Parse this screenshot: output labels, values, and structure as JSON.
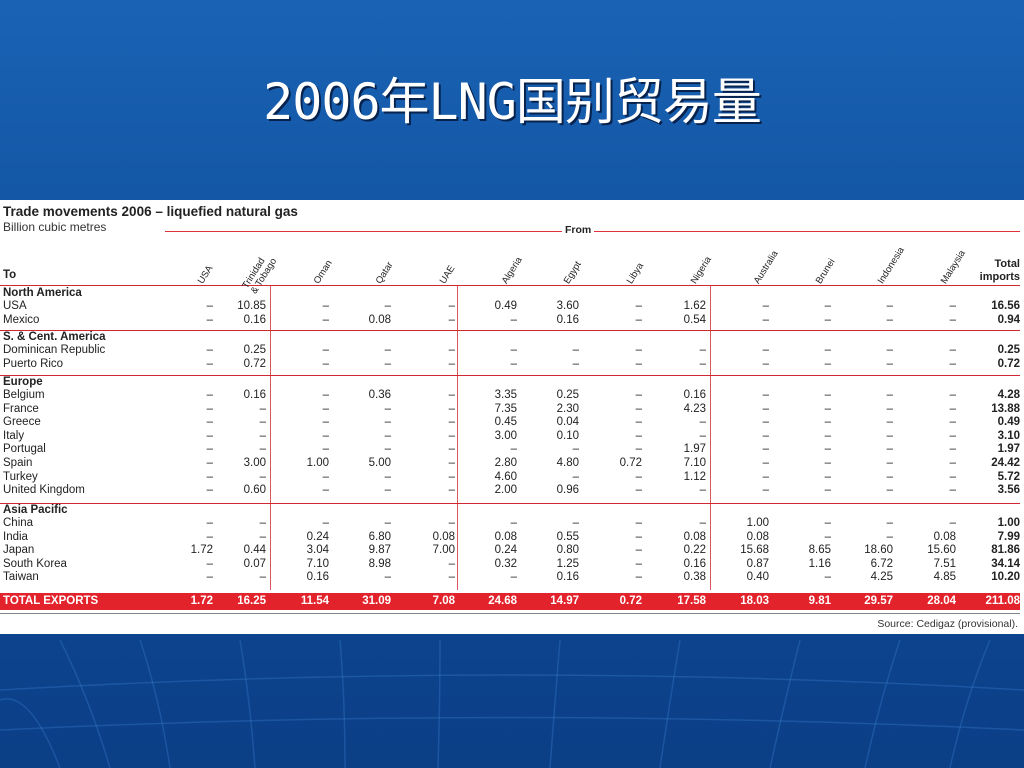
{
  "slide": {
    "title": "2006年LNG国别贸易量"
  },
  "table": {
    "title": "Trade movements 2006 – liquefied natural gas",
    "subtitle": "Billion cubic metres",
    "from_label": "From",
    "to_label": "To",
    "total_label": "Total imports",
    "columns": [
      "USA",
      "Trinidad\n& Tobago",
      "Oman",
      "Qatar",
      "UAE",
      "Algeria",
      "Egypt",
      "Libya",
      "Nigeria",
      "Australia",
      "Brunei",
      "Indonesia",
      "Malaysia"
    ],
    "sections": [
      {
        "name": "North America",
        "rows": [
          {
            "label": "USA",
            "values": [
              "–",
              "10.85",
              "–",
              "–",
              "–",
              "0.49",
              "3.60",
              "–",
              "1.62",
              "–",
              "–",
              "–",
              "–"
            ],
            "total": "16.56"
          },
          {
            "label": "Mexico",
            "values": [
              "–",
              "0.16",
              "–",
              "0.08",
              "–",
              "–",
              "0.16",
              "–",
              "0.54",
              "–",
              "–",
              "–",
              "–"
            ],
            "total": "0.94"
          }
        ]
      },
      {
        "name": "S. & Cent. America",
        "rows": [
          {
            "label": "Dominican Republic",
            "values": [
              "–",
              "0.25",
              "–",
              "–",
              "–",
              "–",
              "–",
              "–",
              "–",
              "–",
              "–",
              "–",
              "–"
            ],
            "total": "0.25"
          },
          {
            "label": "Puerto Rico",
            "values": [
              "–",
              "0.72",
              "–",
              "–",
              "–",
              "–",
              "–",
              "–",
              "–",
              "–",
              "–",
              "–",
              "–"
            ],
            "total": "0.72"
          }
        ]
      },
      {
        "name": "Europe",
        "rows": [
          {
            "label": "Belgium",
            "values": [
              "–",
              "0.16",
              "–",
              "0.36",
              "–",
              "3.35",
              "0.25",
              "–",
              "0.16",
              "–",
              "–",
              "–",
              "–"
            ],
            "total": "4.28"
          },
          {
            "label": "France",
            "values": [
              "–",
              "–",
              "–",
              "–",
              "–",
              "7.35",
              "2.30",
              "–",
              "4.23",
              "–",
              "–",
              "–",
              "–"
            ],
            "total": "13.88"
          },
          {
            "label": "Greece",
            "values": [
              "–",
              "–",
              "–",
              "–",
              "–",
              "0.45",
              "0.04",
              "–",
              "–",
              "–",
              "–",
              "–",
              "–"
            ],
            "total": "0.49"
          },
          {
            "label": "Italy",
            "values": [
              "–",
              "–",
              "–",
              "–",
              "–",
              "3.00",
              "0.10",
              "–",
              "–",
              "–",
              "–",
              "–",
              "–"
            ],
            "total": "3.10"
          },
          {
            "label": "Portugal",
            "values": [
              "–",
              "–",
              "–",
              "–",
              "–",
              "–",
              "–",
              "–",
              "1.97",
              "–",
              "–",
              "–",
              "–"
            ],
            "total": "1.97"
          },
          {
            "label": "Spain",
            "values": [
              "–",
              "3.00",
              "1.00",
              "5.00",
              "–",
              "2.80",
              "4.80",
              "0.72",
              "7.10",
              "–",
              "–",
              "–",
              "–"
            ],
            "total": "24.42"
          },
          {
            "label": "Turkey",
            "values": [
              "–",
              "–",
              "–",
              "–",
              "–",
              "4.60",
              "–",
              "–",
              "1.12",
              "–",
              "–",
              "–",
              "–"
            ],
            "total": "5.72"
          },
          {
            "label": "United Kingdom",
            "values": [
              "–",
              "0.60",
              "–",
              "–",
              "–",
              "2.00",
              "0.96",
              "–",
              "–",
              "–",
              "–",
              "–",
              "–"
            ],
            "total": "3.56"
          }
        ]
      },
      {
        "name": "Asia Pacific",
        "rows": [
          {
            "label": "China",
            "values": [
              "–",
              "–",
              "–",
              "–",
              "–",
              "–",
              "–",
              "–",
              "–",
              "1.00",
              "–",
              "–",
              "–"
            ],
            "total": "1.00"
          },
          {
            "label": "India",
            "values": [
              "–",
              "–",
              "0.24",
              "6.80",
              "0.08",
              "0.08",
              "0.55",
              "–",
              "0.08",
              "0.08",
              "–",
              "–",
              "0.08"
            ],
            "total": "7.99"
          },
          {
            "label": "Japan",
            "values": [
              "1.72",
              "0.44",
              "3.04",
              "9.87",
              "7.00",
              "0.24",
              "0.80",
              "–",
              "0.22",
              "15.68",
              "8.65",
              "18.60",
              "15.60"
            ],
            "total": "81.86"
          },
          {
            "label": "South Korea",
            "values": [
              "–",
              "0.07",
              "7.10",
              "8.98",
              "–",
              "0.32",
              "1.25",
              "–",
              "0.16",
              "0.87",
              "1.16",
              "6.72",
              "7.51"
            ],
            "total": "34.14"
          },
          {
            "label": "Taiwan",
            "values": [
              "–",
              "–",
              "0.16",
              "–",
              "–",
              "–",
              "0.16",
              "–",
              "0.38",
              "0.40",
              "–",
              "4.25",
              "4.85"
            ],
            "total": "10.20"
          }
        ]
      }
    ],
    "totals": {
      "label": "TOTAL EXPORTS",
      "values": [
        "1.72",
        "16.25",
        "11.54",
        "31.09",
        "7.08",
        "24.68",
        "14.97",
        "0.72",
        "17.58",
        "18.03",
        "9.81",
        "29.57",
        "28.04"
      ],
      "total": "211.08"
    },
    "source": "Source: Cedigaz (provisional)."
  },
  "colors": {
    "background": "#1a63b4",
    "accent_red": "#e2232c",
    "text": "#222222"
  }
}
